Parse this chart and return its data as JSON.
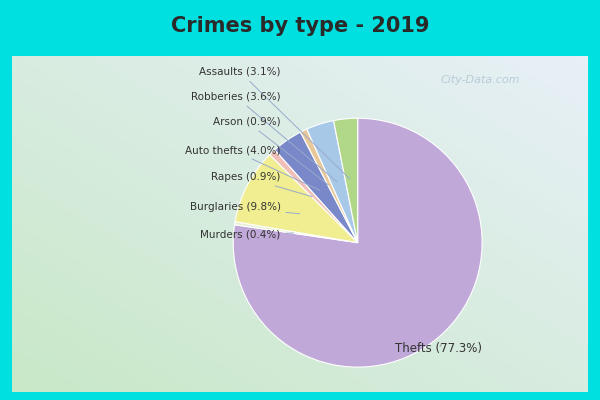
{
  "title": "Crimes by type - 2019",
  "slices": [
    {
      "label": "Thefts",
      "pct": 77.3,
      "color": "#C0A8D8",
      "text_label": "Thefts (77.3%)"
    },
    {
      "label": "Murders",
      "pct": 0.4,
      "color": "#E8F0D0",
      "text_label": "Murders (0.4%)"
    },
    {
      "label": "Burglaries",
      "pct": 9.8,
      "color": "#F0EE90",
      "text_label": "Burglaries (9.8%)"
    },
    {
      "label": "Rapes",
      "pct": 0.9,
      "color": "#F0C0B8",
      "text_label": "Rapes (0.9%)"
    },
    {
      "label": "Auto thefts",
      "pct": 4.0,
      "color": "#7888C8",
      "text_label": "Auto thefts (4.0%)"
    },
    {
      "label": "Arson",
      "pct": 0.9,
      "color": "#E8C898",
      "text_label": "Arson (0.9%)"
    },
    {
      "label": "Robberies",
      "pct": 3.6,
      "color": "#A8C8E8",
      "text_label": "Robberies (3.6%)"
    },
    {
      "label": "Assaults",
      "pct": 3.1,
      "color": "#B0D888",
      "text_label": "Assaults (3.1%)"
    }
  ],
  "background_border": "#00E0E0",
  "background_inner": "#D8EEE0",
  "title_fontsize": 15,
  "figsize": [
    6.0,
    4.0
  ],
  "dpi": 100,
  "watermark": "City-Data.com"
}
